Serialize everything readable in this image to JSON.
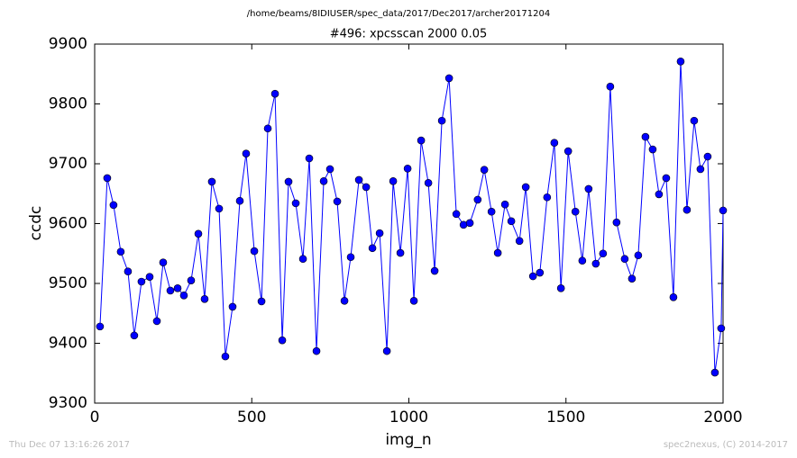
{
  "chart_data": {
    "type": "line",
    "suptitle": "/home/beams/8IDIUSER/spec_data/2017/Dec2017/archer20171204",
    "title": "#496: xpcsscan 2000 0.05",
    "xlabel": "img_n",
    "ylabel": "ccdc",
    "color": "#0000ff",
    "marker_edge": "#000000",
    "xlim": [
      0,
      2000
    ],
    "xticks": [
      0,
      500,
      1000,
      1500,
      2000
    ],
    "ylim": [
      9300,
      9900
    ],
    "yticks": [
      9300,
      9400,
      9500,
      9600,
      9700,
      9800,
      9900
    ],
    "x": [
      17,
      40,
      60,
      83,
      106,
      126,
      149,
      175,
      198,
      218,
      241,
      264,
      284,
      307,
      330,
      350,
      373,
      396,
      416,
      439,
      462,
      482,
      508,
      531,
      551,
      574,
      597,
      617,
      640,
      663,
      683,
      706,
      729,
      749,
      772,
      795,
      815,
      841,
      864,
      884,
      907,
      930,
      950,
      973,
      996,
      1016,
      1039,
      1062,
      1082,
      1105,
      1128,
      1151,
      1174,
      1194,
      1219,
      1240,
      1263,
      1283,
      1306,
      1326,
      1352,
      1372,
      1395,
      1417,
      1440,
      1463,
      1484,
      1507,
      1530,
      1552,
      1572,
      1595,
      1618,
      1641,
      1661,
      1687,
      1710,
      1730,
      1753,
      1776,
      1796,
      1819,
      1842,
      1865,
      1885,
      1908,
      1928,
      1951,
      1974,
      1994,
      2000
    ],
    "values": [
      9428,
      9676,
      9631,
      9553,
      9520,
      9413,
      9503,
      9511,
      9437,
      9535,
      9488,
      9492,
      9480,
      9505,
      9583,
      9474,
      9670,
      9625,
      9378,
      9461,
      9638,
      9717,
      9554,
      9470,
      9759,
      9817,
      9405,
      9670,
      9634,
      9541,
      9709,
      9387,
      9671,
      9691,
      9637,
      9471,
      9544,
      9673,
      9661,
      9559,
      9584,
      9387,
      9671,
      9551,
      9692,
      9471,
      9739,
      9668,
      9521,
      9772,
      9843,
      9616,
      9598,
      9601,
      9640,
      9690,
      9620,
      9551,
      9632,
      9604,
      9571,
      9661,
      9512,
      9518,
      9644,
      9735,
      9492,
      9721,
      9620,
      9538,
      9658,
      9533,
      9550,
      9829,
      9602,
      9541,
      9508,
      9547,
      9745,
      9724,
      9649,
      9676,
      9477,
      9871,
      9623,
      9772,
      9691,
      9712,
      9351,
      9425,
      9622
    ]
  },
  "footer": {
    "left": "Thu Dec 07 13:16:26 2017",
    "right": "spec2nexus, (C) 2014-2017"
  }
}
